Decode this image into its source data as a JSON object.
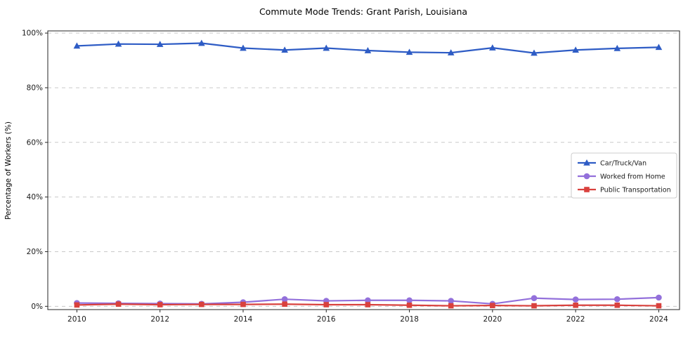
{
  "chart_data": {
    "type": "line",
    "title": "Commute Mode Trends: Grant Parish, Louisiana",
    "xlabel": "",
    "ylabel": "Percentage of Workers (%)",
    "x": [
      2010,
      2011,
      2012,
      2013,
      2014,
      2015,
      2016,
      2017,
      2018,
      2019,
      2020,
      2021,
      2022,
      2023,
      2024
    ],
    "xticks": [
      2010,
      2012,
      2014,
      2016,
      2018,
      2020,
      2022,
      2024
    ],
    "xticklabels": [
      "2010",
      "2012",
      "2014",
      "2016",
      "2018",
      "2020",
      "2022",
      "2024"
    ],
    "yticks": [
      0,
      20,
      40,
      60,
      80,
      100
    ],
    "yticklabels": [
      "0%",
      "20%",
      "40%",
      "60%",
      "80%",
      "100%"
    ],
    "xlim": [
      2009.3,
      2024.5
    ],
    "ylim": [
      -1.2,
      100.8
    ],
    "grid": "horizontal-dashed",
    "legend_position": "center-right",
    "colors": {
      "car": "#2e5cc5",
      "home": "#9370db",
      "transit": "#d9413d",
      "gridline": "#c9c9c9",
      "frame": "#262626"
    },
    "series": [
      {
        "name": "Car/Truck/Van",
        "color": "#2e5cc5",
        "marker": "triangle",
        "values": [
          95.3,
          96.0,
          95.9,
          96.3,
          94.5,
          93.8,
          94.5,
          93.6,
          93.0,
          92.8,
          94.6,
          92.7,
          93.8,
          94.4,
          94.8
        ]
      },
      {
        "name": "Worked from Home",
        "color": "#9370db",
        "marker": "circle",
        "values": [
          1.2,
          1.1,
          1.0,
          0.9,
          1.5,
          2.6,
          2.0,
          2.2,
          2.2,
          2.0,
          0.9,
          3.0,
          2.5,
          2.6,
          3.2
        ]
      },
      {
        "name": "Public Transportation",
        "color": "#d9413d",
        "marker": "square",
        "values": [
          0.5,
          0.8,
          0.6,
          0.7,
          0.7,
          0.8,
          0.6,
          0.6,
          0.4,
          0.2,
          0.3,
          0.2,
          0.4,
          0.4,
          0.2
        ]
      }
    ]
  }
}
